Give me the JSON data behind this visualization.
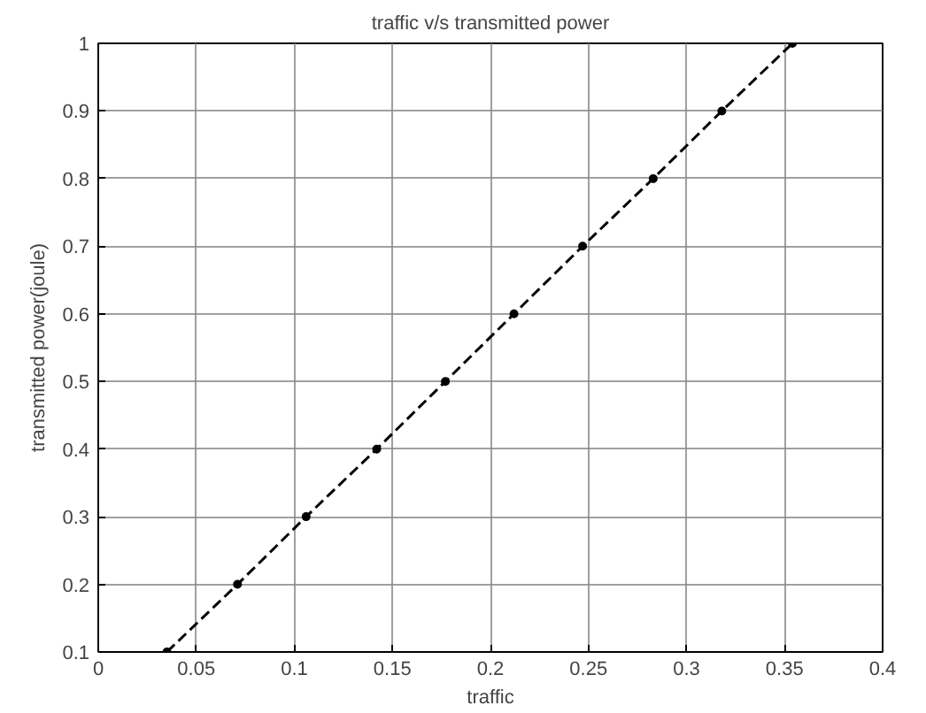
{
  "chart_data": {
    "type": "line",
    "title": "traffic v/s transmitted power",
    "xlabel": "traffic",
    "ylabel": "transmitted power(joule)",
    "x": [
      0.035,
      0.071,
      0.106,
      0.142,
      0.177,
      0.212,
      0.247,
      0.283,
      0.318,
      0.354
    ],
    "series": [
      {
        "color": "#000000",
        "values": [
          0.1,
          0.2,
          0.3,
          0.4,
          0.5,
          0.6,
          0.7,
          0.8,
          0.9,
          1.0
        ]
      }
    ],
    "xlim": [
      0,
      0.4
    ],
    "ylim": [
      0.1,
      1
    ],
    "xticks": [
      0,
      0.05,
      0.1,
      0.15,
      0.2,
      0.25,
      0.3,
      0.35,
      0.4
    ],
    "yticks": [
      0.1,
      0.2,
      0.3,
      0.4,
      0.5,
      0.6,
      0.7,
      0.8,
      0.9,
      1
    ],
    "grid": true,
    "marker": "circle",
    "line_style": "dashed"
  }
}
